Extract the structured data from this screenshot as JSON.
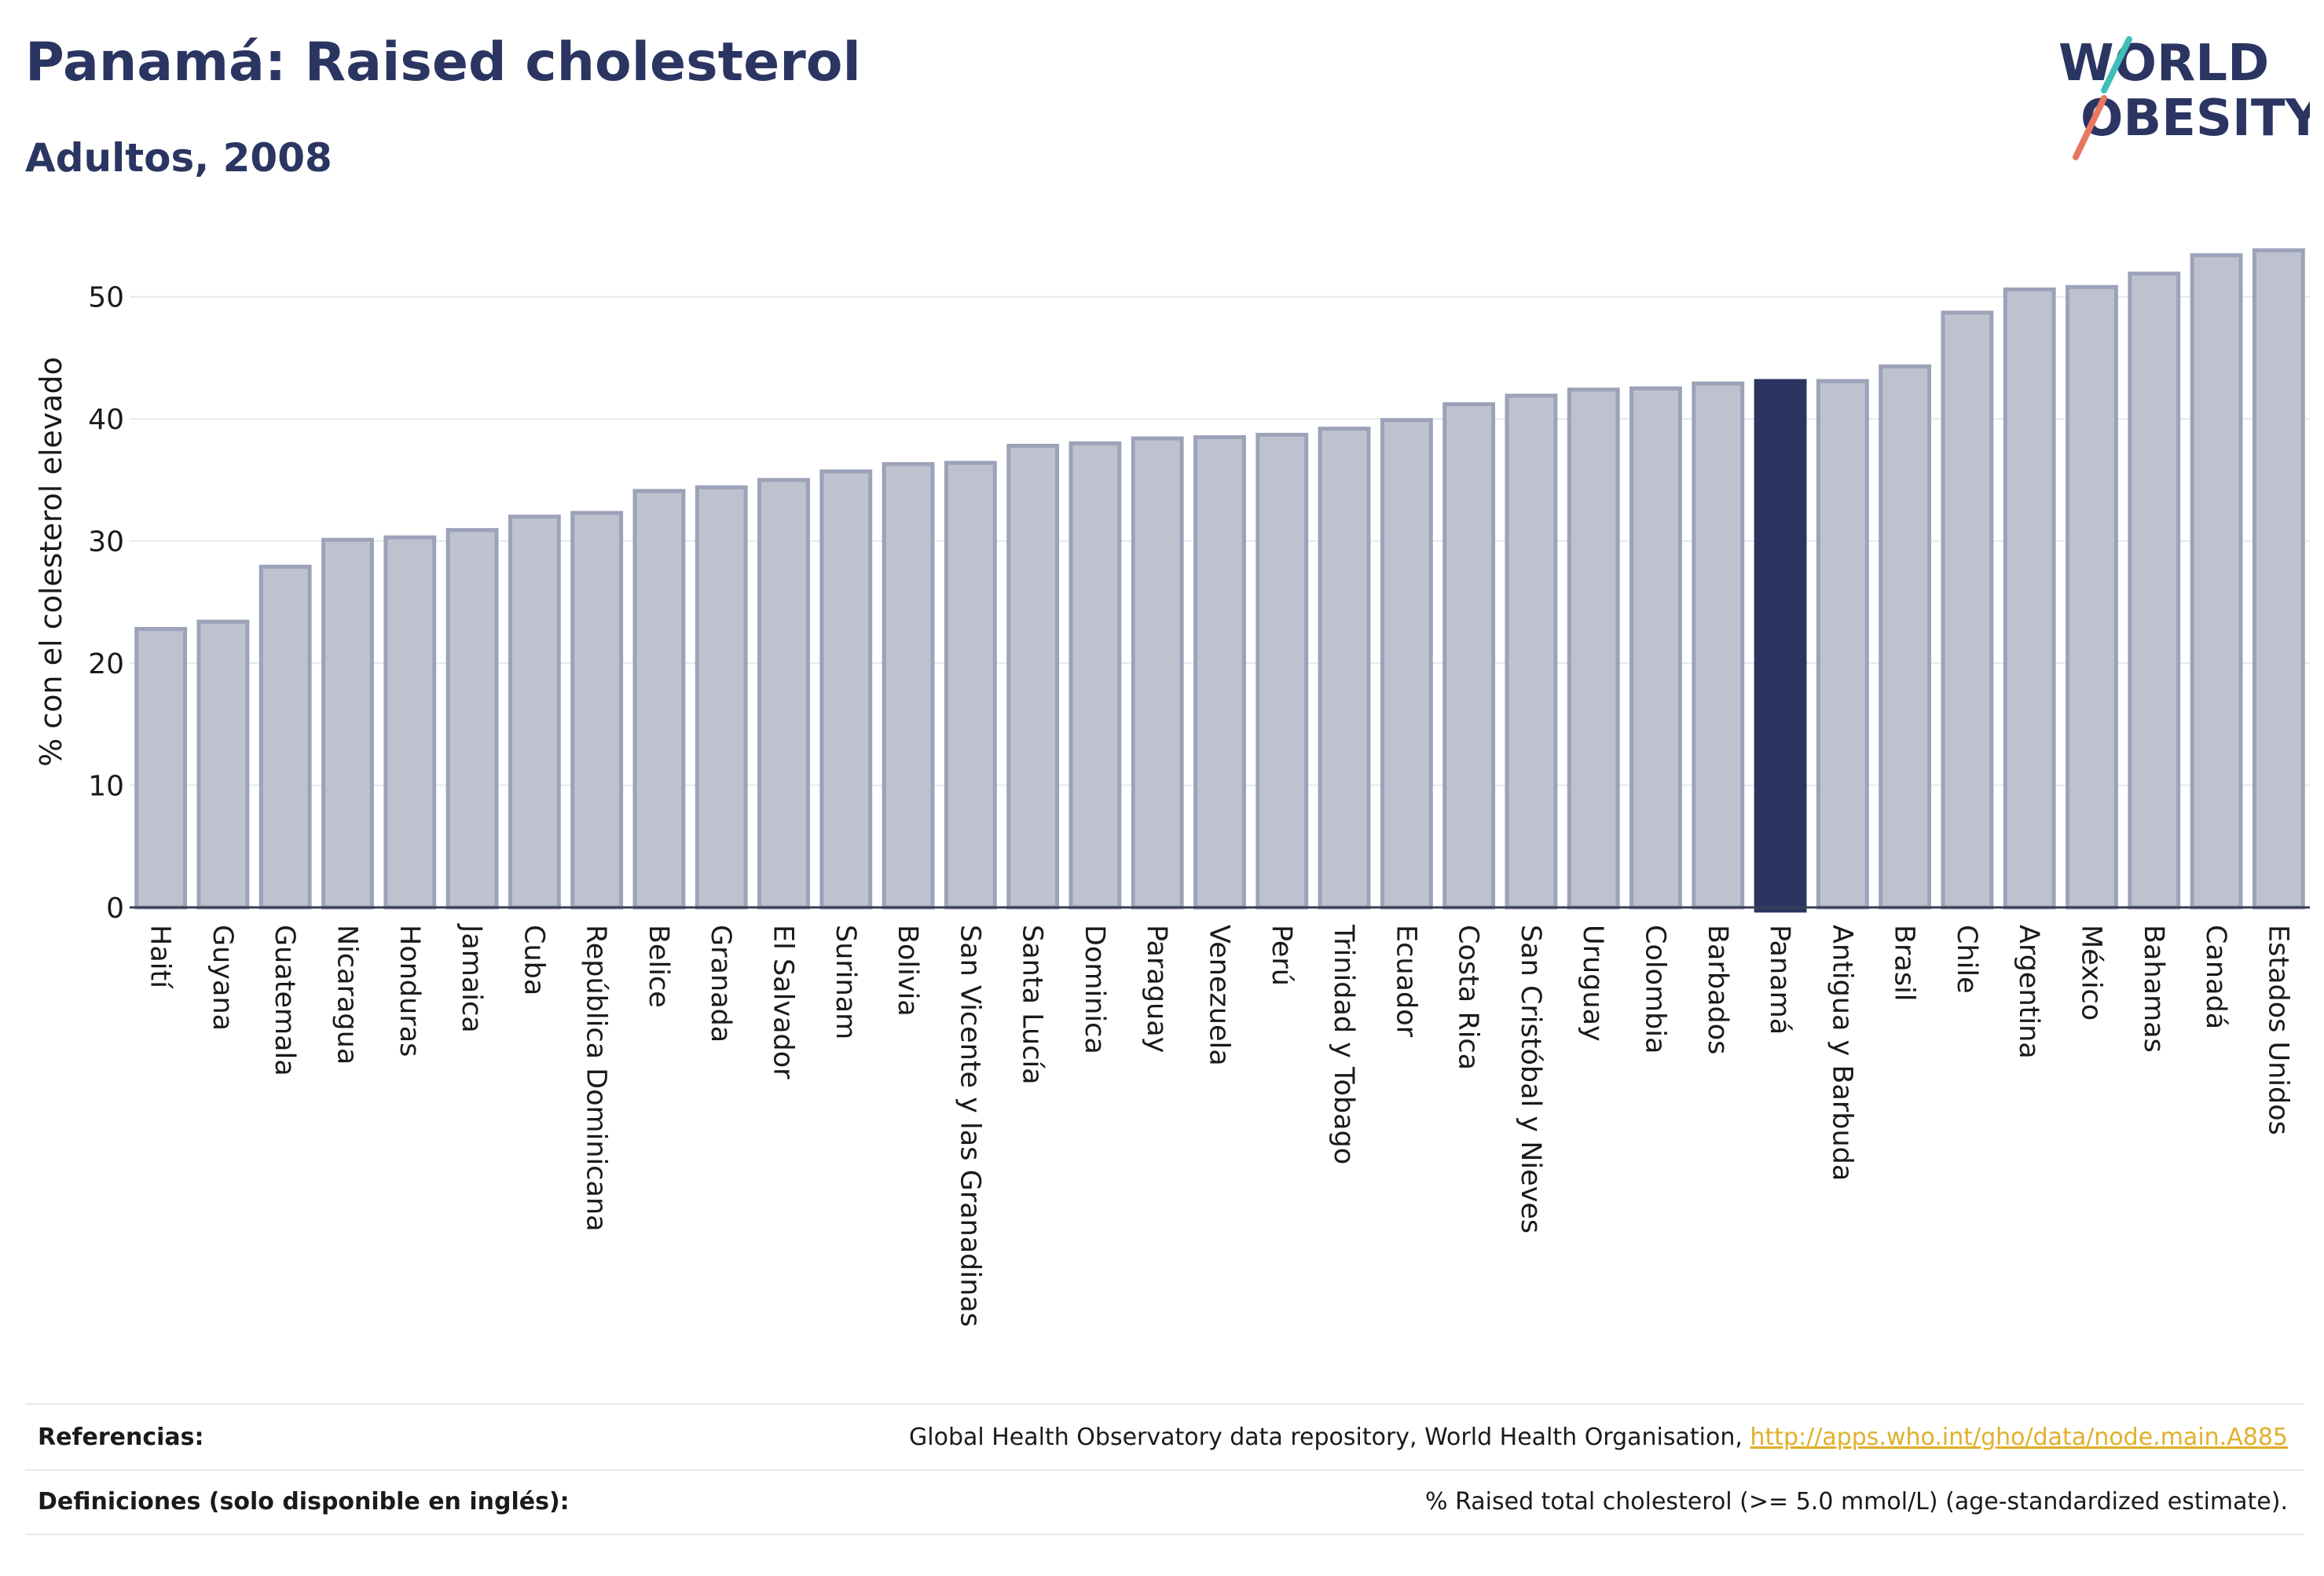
{
  "header": {
    "title": "Panamá: Raised cholesterol",
    "subtitle": "Adultos, 2008"
  },
  "logo": {
    "line1": "WORLD",
    "line2": "OBESITY",
    "slash_colors": [
      "#3fbfb9",
      "#e7775f"
    ],
    "text_color": "#2b3562"
  },
  "colors": {
    "bar": "#bec2cf",
    "bar_border": "#9ca2b8",
    "highlight": "#2b3562",
    "grid": "#e6e8ec"
  },
  "chart_data": {
    "type": "bar",
    "title": "",
    "xlabel": "",
    "ylabel": "% con el colesterol elevado",
    "ylim": [
      0,
      55
    ],
    "yticks": [
      0,
      10,
      20,
      30,
      40,
      50
    ],
    "grid": true,
    "highlight": "Panamá",
    "categories": [
      "Haití",
      "Guyana",
      "Guatemala",
      "Nicaragua",
      "Honduras",
      "Jamaica",
      "Cuba",
      "República Dominicana",
      "Belice",
      "Granada",
      "El Salvador",
      "Surinam",
      "Bolivia",
      "San Vicente y las Granadinas",
      "Santa Lucía",
      "Dominica",
      "Paraguay",
      "Venezuela",
      "Perú",
      "Trinidad y Tobago",
      "Ecuador",
      "Costa Rica",
      "San Cristóbal y Nieves",
      "Uruguay",
      "Colombia",
      "Barbados",
      "Panamá",
      "Antigua y Barbuda",
      "Brasil",
      "Chile",
      "Argentina",
      "México",
      "Bahamas",
      "Canadá",
      "Estados Unidos"
    ],
    "values": [
      22.8,
      23.4,
      27.9,
      30.1,
      30.3,
      30.9,
      32.0,
      32.3,
      34.1,
      34.4,
      35.0,
      35.7,
      36.3,
      36.4,
      37.8,
      38.0,
      38.4,
      38.5,
      38.7,
      39.2,
      39.9,
      41.2,
      41.9,
      42.4,
      42.5,
      42.9,
      43.1,
      43.1,
      44.3,
      48.7,
      50.6,
      50.8,
      51.9,
      53.4,
      53.8
    ]
  },
  "footer": {
    "references_label": "Referencias:",
    "references_text": "Global Health Observatory data repository, World Health Organisation, ",
    "references_link": "http://apps.who.int/gho/data/node.main.A885",
    "definitions_label": "Definiciones (solo disponible en inglés):",
    "definitions_text": "% Raised total cholesterol (>= 5.0 mmol/L) (age-standardized estimate)."
  }
}
